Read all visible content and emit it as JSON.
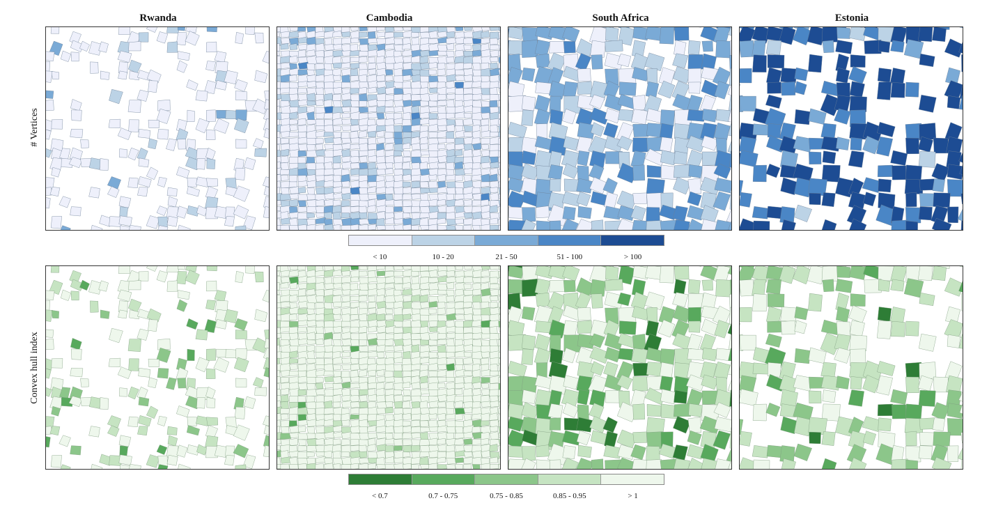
{
  "columns": [
    "Rwanda",
    "Cambodia",
    "South Africa",
    "Estonia"
  ],
  "rows": [
    {
      "label": "# Vertices",
      "legend": {
        "labels": [
          "< 10",
          "10 - 20",
          "21 - 50",
          "51 - 100",
          "> 100"
        ],
        "colors": [
          "#eef0fb",
          "#bcd3e6",
          "#7aaad6",
          "#4a86c6",
          "#1d4c93"
        ]
      }
    },
    {
      "label": "Convex hull index",
      "legend": {
        "labels": [
          "< 0.7",
          "0.7 - 0.75",
          "0.75 - 0.85",
          "0.85 - 0.95",
          "> 1"
        ],
        "colors": [
          "#2e7d36",
          "#58a95d",
          "#8cc68a",
          "#c6e4c2",
          "#eef7ec"
        ]
      }
    }
  ]
}
